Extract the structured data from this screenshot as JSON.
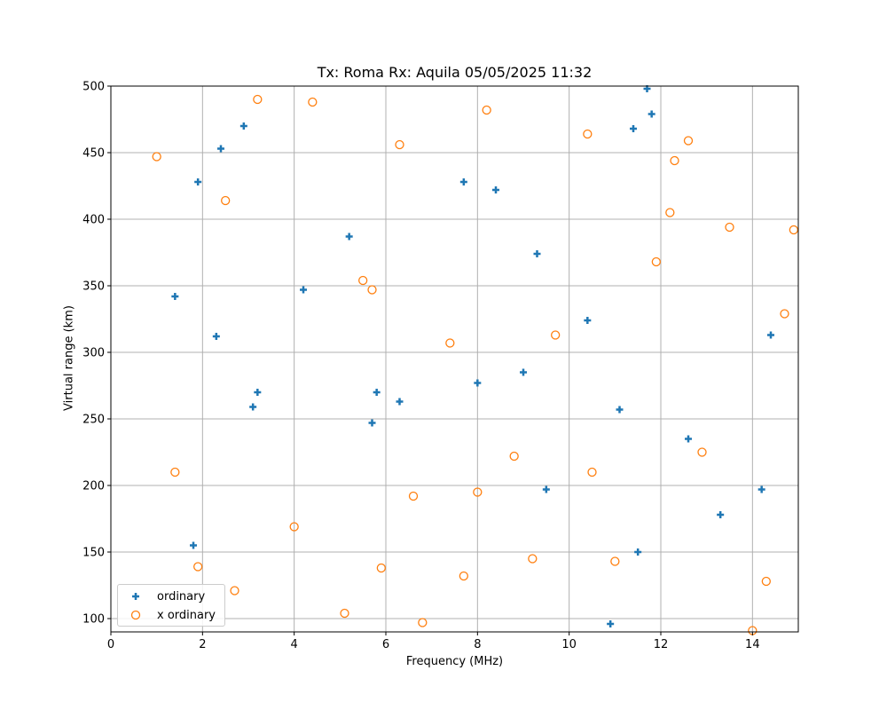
{
  "chart_data": {
    "type": "scatter",
    "title": "Tx: Roma Rx: Aquila 05/05/2025 11:32",
    "xlabel": "Frequency (MHz)",
    "ylabel": "Virtual range (km)",
    "xlim": [
      0,
      15
    ],
    "ylim": [
      90,
      500
    ],
    "xticks": [
      0,
      2,
      4,
      6,
      8,
      10,
      12,
      14
    ],
    "yticks": [
      100,
      150,
      200,
      250,
      300,
      350,
      400,
      450,
      500
    ],
    "grid": true,
    "legend_position": "lower left",
    "series": [
      {
        "name": "ordinary",
        "marker": "plus",
        "color": "#1f77b4",
        "points": [
          [
            11.7,
            498
          ],
          [
            11.8,
            479
          ],
          [
            11.4,
            468
          ],
          [
            2.9,
            470
          ],
          [
            2.4,
            453
          ],
          [
            1.9,
            428
          ],
          [
            7.7,
            428
          ],
          [
            8.4,
            422
          ],
          [
            5.2,
            387
          ],
          [
            9.3,
            374
          ],
          [
            1.4,
            342
          ],
          [
            4.2,
            347
          ],
          [
            10.4,
            324
          ],
          [
            2.3,
            312
          ],
          [
            14.4,
            313
          ],
          [
            9.0,
            285
          ],
          [
            8.0,
            277
          ],
          [
            3.2,
            270
          ],
          [
            5.8,
            270
          ],
          [
            3.1,
            259
          ],
          [
            6.3,
            263
          ],
          [
            5.7,
            247
          ],
          [
            11.1,
            257
          ],
          [
            12.6,
            235
          ],
          [
            9.5,
            197
          ],
          [
            14.2,
            197
          ],
          [
            13.3,
            178
          ],
          [
            1.8,
            155
          ],
          [
            11.5,
            150
          ],
          [
            10.9,
            96
          ]
        ]
      },
      {
        "name": "x ordinary",
        "marker": "circle-open",
        "color": "#ff7f0e",
        "points": [
          [
            3.2,
            490
          ],
          [
            4.4,
            488
          ],
          [
            8.2,
            482
          ],
          [
            1.0,
            447
          ],
          [
            6.3,
            456
          ],
          [
            10.4,
            464
          ],
          [
            12.6,
            459
          ],
          [
            12.3,
            444
          ],
          [
            2.5,
            414
          ],
          [
            12.2,
            405
          ],
          [
            13.5,
            394
          ],
          [
            14.9,
            392
          ],
          [
            11.9,
            368
          ],
          [
            5.5,
            354
          ],
          [
            5.7,
            347
          ],
          [
            14.7,
            329
          ],
          [
            9.7,
            313
          ],
          [
            7.4,
            307
          ],
          [
            8.8,
            222
          ],
          [
            12.9,
            225
          ],
          [
            1.4,
            210
          ],
          [
            10.5,
            210
          ],
          [
            8.0,
            195
          ],
          [
            6.6,
            192
          ],
          [
            4.0,
            169
          ],
          [
            9.2,
            145
          ],
          [
            11.0,
            143
          ],
          [
            1.9,
            139
          ],
          [
            5.9,
            138
          ],
          [
            7.7,
            132
          ],
          [
            14.3,
            128
          ],
          [
            2.7,
            121
          ],
          [
            5.1,
            104
          ],
          [
            6.8,
            97
          ],
          [
            14.0,
            91
          ]
        ]
      }
    ]
  },
  "legend": {
    "items": [
      {
        "label": "ordinary"
      },
      {
        "label": "x ordinary"
      }
    ]
  }
}
